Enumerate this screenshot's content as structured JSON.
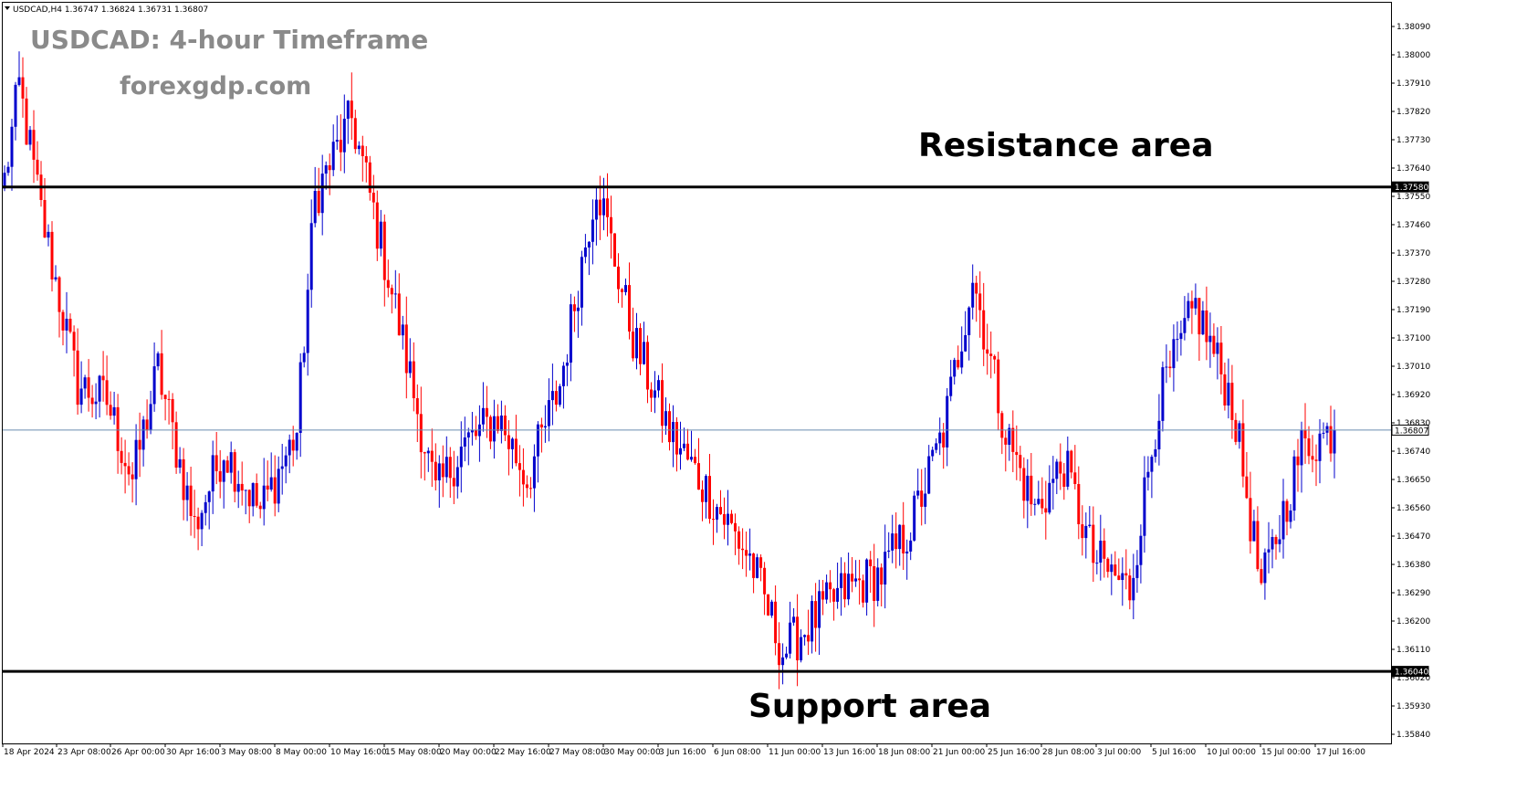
{
  "overlay": {
    "title": "USDCAD: 4-hour Timeframe",
    "site": "forexgdp.com",
    "resistance_label": "Resistance area",
    "support_label": "Support area"
  },
  "symbol_info": "USDCAD,H4  1.36747 1.36824 1.36731 1.36807",
  "colors": {
    "bull": "#0000cc",
    "bear": "#ff0000",
    "level_line": "#000000",
    "current_line": "#6a8caf",
    "frame": "#000000",
    "background": "#ffffff"
  },
  "chart_data": {
    "type": "candlestick",
    "symbol": "USDCAD",
    "timeframe": "H4",
    "ohlc_header": {
      "open": 1.36747,
      "high": 1.36824,
      "low": 1.36731,
      "close": 1.36807
    },
    "ylim": [
      1.35795,
      1.38165
    ],
    "y_ticks": [
      "1.38090",
      "1.38000",
      "1.37910",
      "1.37820",
      "1.37730",
      "1.37640",
      "1.37550",
      "1.37460",
      "1.37370",
      "1.37280",
      "1.37190",
      "1.37100",
      "1.37010",
      "1.36920",
      "1.36830",
      "1.36740",
      "1.36650",
      "1.36560",
      "1.36470",
      "1.36380",
      "1.36290",
      "1.36200",
      "1.36110",
      "1.36020",
      "1.35930",
      "1.35840"
    ],
    "x_ticks": [
      "18 Apr 2024",
      "23 Apr 08:00",
      "26 Apr 00:00",
      "30 Apr 16:00",
      "3 May 08:00",
      "8 May 00:00",
      "10 May 16:00",
      "15 May 08:00",
      "20 May 00:00",
      "22 May 16:00",
      "27 May 08:00",
      "30 May 00:00",
      "3 Jun 16:00",
      "6 Jun 08:00",
      "11 Jun 00:00",
      "13 Jun 16:00",
      "18 Jun 08:00",
      "21 Jun 00:00",
      "25 Jun 16:00",
      "28 Jun 08:00",
      "3 Jul 00:00",
      "5 Jul 16:00",
      "10 Jul 00:00",
      "15 Jul 00:00",
      "17 Jul 16:00"
    ],
    "levels": [
      {
        "name": "Resistance area",
        "value": 1.3758,
        "tag": "1.37580"
      },
      {
        "name": "Support area",
        "value": 1.3604,
        "tag": "1.36040"
      }
    ],
    "current_price": {
      "value": 1.36807,
      "tag": "1.36807"
    },
    "candles_count": 365,
    "series": [
      {
        "name": "close",
        "anchors": [
          [
            0,
            1.376
          ],
          [
            4,
            1.379
          ],
          [
            10,
            1.375
          ],
          [
            20,
            1.3695
          ],
          [
            28,
            1.369
          ],
          [
            35,
            1.3665
          ],
          [
            42,
            1.37
          ],
          [
            52,
            1.365
          ],
          [
            60,
            1.3675
          ],
          [
            70,
            1.3655
          ],
          [
            80,
            1.368
          ],
          [
            85,
            1.3755
          ],
          [
            95,
            1.378
          ],
          [
            105,
            1.373
          ],
          [
            118,
            1.366
          ],
          [
            125,
            1.3675
          ],
          [
            135,
            1.3685
          ],
          [
            143,
            1.3665
          ],
          [
            152,
            1.3695
          ],
          [
            162,
            1.376
          ],
          [
            172,
            1.371
          ],
          [
            182,
            1.368
          ],
          [
            193,
            1.366
          ],
          [
            204,
            1.364
          ],
          [
            213,
            1.361
          ],
          [
            221,
            1.362
          ],
          [
            230,
            1.363
          ],
          [
            240,
            1.3635
          ],
          [
            248,
            1.365
          ],
          [
            257,
            1.368
          ],
          [
            265,
            1.373
          ],
          [
            274,
            1.368
          ],
          [
            282,
            1.3655
          ],
          [
            290,
            1.367
          ],
          [
            298,
            1.364
          ],
          [
            308,
            1.363
          ],
          [
            316,
            1.369
          ],
          [
            326,
            1.372
          ],
          [
            336,
            1.369
          ],
          [
            344,
            1.363
          ],
          [
            355,
            1.3675
          ],
          [
            363,
            1.368
          ]
        ]
      }
    ]
  }
}
